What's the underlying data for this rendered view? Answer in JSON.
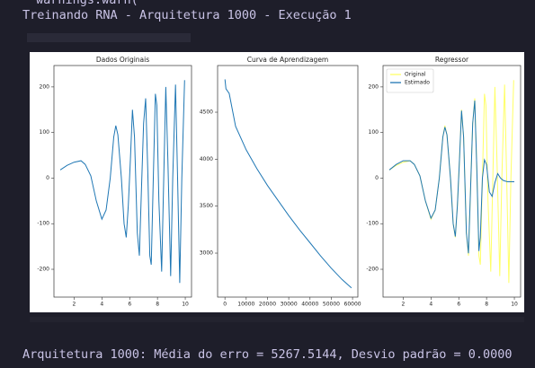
{
  "header_cut": "warnings.warn(",
  "header": "Treinando RNA - Arquitetura 1000 - Execução 1",
  "footer": "Arquitetura 1000: Média do erro = 5267.5144, Desvio padrão = 0.0000",
  "chart_data": [
    {
      "type": "line",
      "title": "Dados Originais",
      "series": [
        {
          "color": "#1f77b4",
          "x": [
            1.0,
            1.5,
            2.0,
            2.5,
            2.8,
            3.2,
            3.6,
            4.0,
            4.3,
            4.6,
            4.85,
            5.0,
            5.15,
            5.4,
            5.6,
            5.75,
            5.9,
            6.05,
            6.2,
            6.35,
            6.55,
            6.7,
            6.85,
            7.0,
            7.15,
            7.3,
            7.45,
            7.55,
            7.7,
            7.85,
            7.95,
            8.1,
            8.3,
            8.45,
            8.6,
            8.75,
            8.95,
            9.1,
            9.3,
            9.45,
            9.6,
            9.75,
            9.95
          ],
          "values": [
            18,
            28,
            35,
            38,
            30,
            5,
            -50,
            -90,
            -70,
            0,
            90,
            115,
            95,
            0,
            -100,
            -130,
            -60,
            40,
            150,
            90,
            -120,
            -170,
            -20,
            120,
            175,
            20,
            -170,
            -190,
            0,
            185,
            160,
            -50,
            -205,
            0,
            200,
            40,
            -215,
            0,
            205,
            0,
            -230,
            0,
            215
          ]
        }
      ],
      "xlim": [
        0.55,
        10.45
      ],
      "xticks": [
        2,
        4,
        6,
        8,
        10
      ],
      "ylim": [
        -261,
        247
      ],
      "yticks": [
        -200,
        -100,
        0,
        100,
        200
      ]
    },
    {
      "type": "line",
      "title": "Curva de Aprendizagem",
      "series": [
        {
          "color": "#1f77b4",
          "x": [
            0,
            500,
            2000,
            5000,
            10000,
            15000,
            20000,
            25000,
            30000,
            35000,
            40000,
            45000,
            50000,
            55000,
            59500
          ],
          "values": [
            4850,
            4750,
            4700,
            4350,
            4100,
            3900,
            3720,
            3560,
            3400,
            3250,
            3110,
            2970,
            2840,
            2720,
            2630
          ]
        }
      ],
      "xlim": [
        -3450,
        62500
      ],
      "xticks": [
        0,
        10000,
        20000,
        30000,
        40000,
        50000,
        60000
      ],
      "ylim": [
        2532,
        4997
      ],
      "yticks": [
        3000,
        3500,
        4000,
        4500
      ]
    },
    {
      "type": "line",
      "title": "Regressor",
      "legend": "upper left",
      "series": [
        {
          "name": "Original",
          "color": "#ffff66",
          "x": [
            1.0,
            1.5,
            2.0,
            2.5,
            2.8,
            3.2,
            3.6,
            4.0,
            4.3,
            4.6,
            4.85,
            5.0,
            5.15,
            5.4,
            5.6,
            5.75,
            5.9,
            6.05,
            6.2,
            6.35,
            6.55,
            6.7,
            6.85,
            7.0,
            7.15,
            7.3,
            7.45,
            7.55,
            7.7,
            7.85,
            7.95,
            8.1,
            8.3,
            8.45,
            8.6,
            8.75,
            8.95,
            9.1,
            9.3,
            9.45,
            9.6,
            9.75,
            9.95
          ],
          "values": [
            18,
            28,
            35,
            38,
            30,
            5,
            -50,
            -90,
            -70,
            0,
            90,
            115,
            95,
            0,
            -100,
            -130,
            -60,
            40,
            150,
            90,
            -120,
            -170,
            -20,
            120,
            175,
            20,
            -170,
            -190,
            0,
            185,
            160,
            -50,
            -205,
            0,
            200,
            40,
            -215,
            0,
            205,
            0,
            -230,
            0,
            215
          ]
        },
        {
          "name": "Estimado",
          "color": "#1f77b4",
          "x": [
            1.0,
            1.5,
            2.0,
            2.5,
            2.8,
            3.2,
            3.6,
            4.0,
            4.3,
            4.6,
            4.85,
            5.0,
            5.15,
            5.4,
            5.6,
            5.75,
            5.9,
            6.05,
            6.2,
            6.35,
            6.55,
            6.7,
            6.85,
            7.0,
            7.15,
            7.3,
            7.45,
            7.55,
            7.7,
            7.85,
            8.0,
            8.2,
            8.4,
            8.6,
            8.8,
            9.0,
            9.2,
            9.5,
            10.0
          ],
          "values": [
            18,
            30,
            38,
            38,
            30,
            5,
            -50,
            -88,
            -70,
            0,
            90,
            112,
            95,
            0,
            -100,
            -128,
            -60,
            40,
            148,
            90,
            -120,
            -165,
            -20,
            120,
            170,
            20,
            -160,
            -130,
            0,
            40,
            30,
            -30,
            -40,
            -10,
            10,
            0,
            -5,
            -8,
            -8
          ]
        }
      ],
      "xlim": [
        0.55,
        10.45
      ],
      "xticks": [
        2,
        4,
        6,
        8,
        10
      ],
      "ylim": [
        -261,
        247
      ],
      "yticks": [
        -200,
        -100,
        0,
        100,
        200
      ]
    }
  ]
}
